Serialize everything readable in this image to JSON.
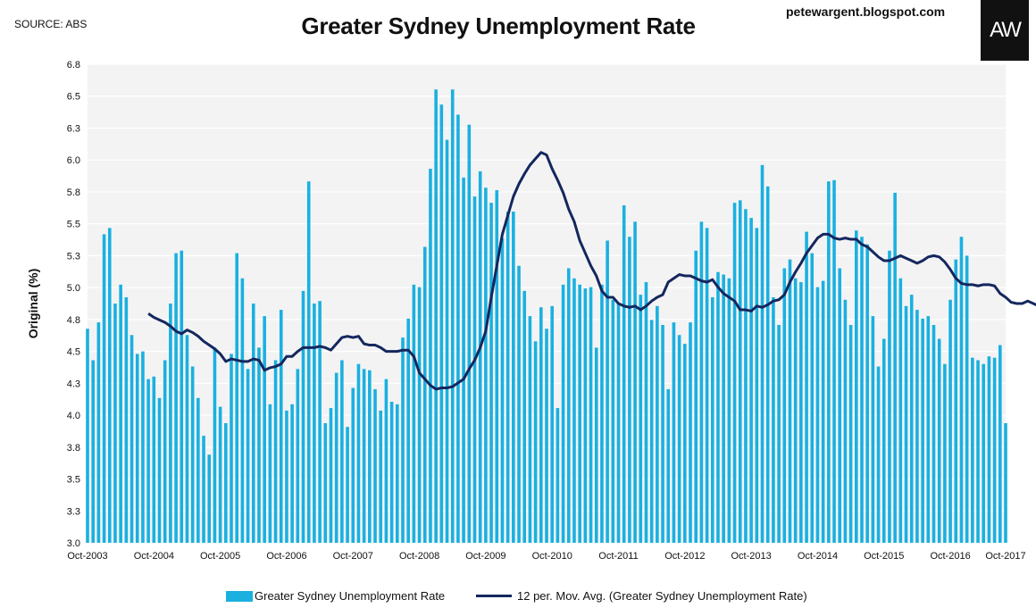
{
  "header": {
    "source": "SOURCE: ABS",
    "title": "Greater Sydney Unemployment Rate",
    "blog": "petewargent.blogspot.com",
    "logo": "AW"
  },
  "colors": {
    "bars": "#1ab0e0",
    "line": "#14275e",
    "plot_bg": "#f3f3f3",
    "grid": "#ffffff"
  },
  "chart_data": {
    "type": "bar",
    "title": "Greater Sydney Unemployment Rate",
    "ylabel": "Original (%)",
    "xlabel": "",
    "ylim": [
      3.0,
      6.8
    ],
    "yticks": [
      "3.0",
      "3.3",
      "3.5",
      "3.8",
      "4.0",
      "4.3",
      "4.5",
      "4.8",
      "5.0",
      "5.3",
      "5.5",
      "5.8",
      "6.0",
      "6.3",
      "6.5",
      "6.8"
    ],
    "xticks": [
      "Oct-2003",
      "Oct-2004",
      "Oct-2005",
      "Oct-2006",
      "Oct-2007",
      "Oct-2008",
      "Oct-2009",
      "Oct-2010",
      "Oct-2011",
      "Oct-2012",
      "Oct-2013",
      "Oct-2014",
      "Oct-2015",
      "Oct-2016",
      "Oct-2017"
    ],
    "start": "Oct-2003",
    "end": "Oct-2017",
    "grid": true,
    "legend_position": "bottom",
    "series": [
      {
        "name": "Greater Sydney Unemployment Rate",
        "type": "bar",
        "values": [
          4.7,
          4.45,
          4.75,
          5.45,
          5.5,
          4.9,
          5.05,
          4.95,
          4.65,
          4.5,
          4.52,
          4.3,
          4.32,
          4.15,
          4.45,
          4.9,
          5.3,
          5.32,
          4.65,
          4.4,
          4.15,
          3.85,
          3.7,
          4.55,
          4.08,
          3.95,
          4.5,
          5.3,
          5.1,
          4.38,
          4.9,
          4.55,
          4.8,
          4.1,
          4.45,
          4.85,
          4.05,
          4.1,
          4.38,
          5.0,
          5.87,
          4.9,
          4.92,
          3.95,
          4.07,
          4.35,
          4.45,
          3.92,
          4.23,
          4.42,
          4.38,
          4.37,
          4.22,
          4.05,
          4.3,
          4.12,
          4.1,
          4.63,
          4.78,
          5.05,
          5.03,
          5.35,
          5.97,
          6.6,
          6.48,
          6.2,
          6.6,
          6.4,
          5.9,
          6.32,
          5.75,
          5.95,
          5.82,
          5.7,
          5.8,
          5.42,
          5.63,
          5.63,
          5.2,
          5.0,
          4.8,
          4.6,
          4.87,
          4.7,
          4.88,
          4.07,
          5.05,
          5.18,
          5.1,
          5.05,
          5.02,
          5.03,
          4.55,
          5.05,
          5.4,
          4.93,
          4.9,
          5.68,
          5.43,
          5.55,
          4.97,
          5.07,
          4.77,
          4.88,
          4.73,
          4.22,
          4.75,
          4.65,
          4.58,
          4.75,
          5.32,
          5.55,
          5.5,
          4.95,
          5.15,
          5.13,
          5.1,
          5.7,
          5.72,
          5.65,
          5.58,
          5.5,
          6.0,
          5.83,
          4.95,
          4.73,
          5.18,
          5.25,
          5.1,
          5.07,
          5.47,
          5.3,
          5.03,
          5.08,
          5.87,
          5.88,
          5.18,
          4.93,
          4.73,
          5.48,
          5.43,
          5.37,
          4.8,
          4.4,
          4.62,
          5.32,
          5.78,
          5.1,
          4.88,
          4.97,
          4.85,
          4.78,
          4.8,
          4.73,
          4.62,
          4.42,
          4.93,
          5.25,
          5.43,
          5.28,
          4.47,
          4.45,
          4.42,
          4.48,
          4.47,
          4.57,
          3.95
        ]
      },
      {
        "name": "12 per. Mov. Avg. (Greater Sydney Unemployment Rate)",
        "type": "line",
        "start_index": 11,
        "values": [
          4.82,
          4.79,
          4.77,
          4.75,
          4.72,
          4.68,
          4.66,
          4.69,
          4.67,
          4.64,
          4.6,
          4.57,
          4.54,
          4.5,
          4.44,
          4.46,
          4.45,
          4.44,
          4.44,
          4.46,
          4.45,
          4.37,
          4.39,
          4.4,
          4.42,
          4.48,
          4.48,
          4.52,
          4.55,
          4.55,
          4.55,
          4.56,
          4.55,
          4.53,
          4.58,
          4.63,
          4.64,
          4.63,
          4.64,
          4.58,
          4.57,
          4.57,
          4.55,
          4.52,
          4.52,
          4.52,
          4.53,
          4.53,
          4.48,
          4.35,
          4.3,
          4.25,
          4.22,
          4.23,
          4.23,
          4.24,
          4.27,
          4.3,
          4.38,
          4.45,
          4.55,
          4.68,
          4.95,
          5.2,
          5.45,
          5.6,
          5.75,
          5.85,
          5.93,
          6.0,
          6.05,
          6.1,
          6.08,
          5.97,
          5.88,
          5.78,
          5.65,
          5.55,
          5.4,
          5.3,
          5.2,
          5.12,
          5.0,
          4.95,
          4.95,
          4.9,
          4.88,
          4.87,
          4.88,
          4.85,
          4.88,
          4.92,
          4.95,
          4.97,
          5.07,
          5.1,
          5.13,
          5.12,
          5.12,
          5.1,
          5.08,
          5.07,
          5.09,
          5.03,
          4.98,
          4.95,
          4.92,
          4.85,
          4.85,
          4.84,
          4.88,
          4.87,
          4.89,
          4.92,
          4.93,
          4.97,
          5.07,
          5.15,
          5.22,
          5.3,
          5.36,
          5.42,
          5.45,
          5.45,
          5.42,
          5.41,
          5.42,
          5.41,
          5.41,
          5.37,
          5.35,
          5.31,
          5.27,
          5.24,
          5.24,
          5.26,
          5.28,
          5.26,
          5.24,
          5.22,
          5.24,
          5.27,
          5.28,
          5.27,
          5.23,
          5.17,
          5.1,
          5.06,
          5.05,
          5.05,
          5.04,
          5.05,
          5.05,
          5.04,
          4.98,
          4.95,
          4.91,
          4.9,
          4.9,
          4.92,
          4.9,
          4.88,
          4.86,
          4.83,
          4.8,
          4.78,
          4.76,
          4.75,
          4.73,
          4.68
        ]
      }
    ]
  },
  "legend": {
    "bar_label": "Greater Sydney Unemployment Rate",
    "line_label": "12 per. Mov. Avg. (Greater Sydney Unemployment Rate)"
  }
}
